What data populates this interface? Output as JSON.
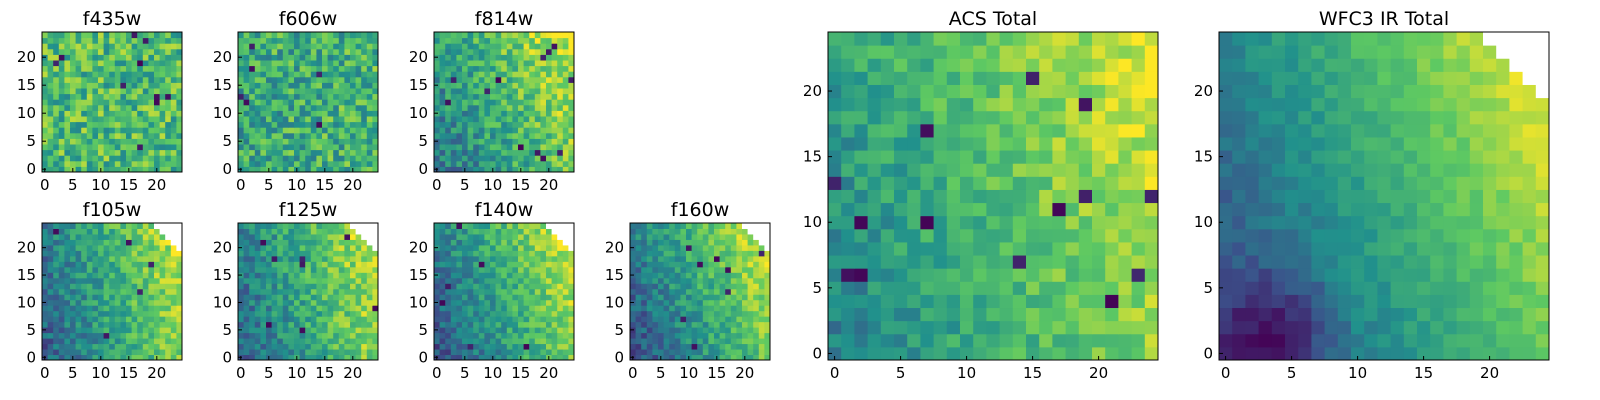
{
  "figure": {
    "colormap": [
      "#440154",
      "#3b528b",
      "#21918c",
      "#5ec962",
      "#fde725"
    ],
    "frame_color": "#000000",
    "missing_color": "#ffffff"
  },
  "chart_data": [
    {
      "type": "heatmap",
      "title": "f435w",
      "grid_size": 25,
      "xticks": [
        0,
        5,
        10,
        15,
        20
      ],
      "yticks": [
        0,
        5,
        10,
        15,
        20
      ],
      "xlim": [
        -0.5,
        24.5
      ],
      "ylim": [
        -0.5,
        24.5
      ],
      "value_range": [
        0,
        1
      ],
      "gradient": [
        0.0,
        0.0
      ],
      "base": 0.68,
      "noise": 0.22,
      "dark_spots": 10,
      "blank_corner": 0,
      "seed": 11
    },
    {
      "type": "heatmap",
      "title": "f606w",
      "grid_size": 25,
      "xticks": [
        0,
        5,
        10,
        15,
        20
      ],
      "yticks": [
        0,
        5,
        10,
        15,
        20
      ],
      "xlim": [
        -0.5,
        24.5
      ],
      "ylim": [
        -0.5,
        24.5
      ],
      "value_range": [
        0,
        1
      ],
      "gradient": [
        0.05,
        0.0
      ],
      "base": 0.6,
      "noise": 0.22,
      "dark_spots": 6,
      "blank_corner": 0,
      "seed": 23
    },
    {
      "type": "heatmap",
      "title": "f814w",
      "grid_size": 25,
      "xticks": [
        0,
        5,
        10,
        15,
        20
      ],
      "yticks": [
        0,
        5,
        10,
        15,
        20
      ],
      "xlim": [
        -0.5,
        24.5
      ],
      "ylim": [
        -0.5,
        24.5
      ],
      "value_range": [
        0,
        1
      ],
      "gradient": [
        0.38,
        0.18
      ],
      "base": 0.38,
      "noise": 0.18,
      "dark_spots": 12,
      "blank_corner": 0,
      "seed": 37
    },
    {
      "type": "heatmap",
      "title": "f105w",
      "grid_size": 25,
      "xticks": [
        0,
        5,
        10,
        15,
        20
      ],
      "yticks": [
        0,
        5,
        10,
        15,
        20
      ],
      "xlim": [
        -0.5,
        24.5
      ],
      "ylim": [
        -0.5,
        24.5
      ],
      "value_range": [
        0,
        1
      ],
      "gradient": [
        0.5,
        0.12
      ],
      "base": 0.3,
      "noise": 0.15,
      "dark_spots": 6,
      "blank_corner": 6,
      "seed": 41
    },
    {
      "type": "heatmap",
      "title": "f125w",
      "grid_size": 25,
      "xticks": [
        0,
        5,
        10,
        15,
        20
      ],
      "yticks": [
        0,
        5,
        10,
        15,
        20
      ],
      "xlim": [
        -0.5,
        24.5
      ],
      "ylim": [
        -0.5,
        24.5
      ],
      "value_range": [
        0,
        1
      ],
      "gradient": [
        0.5,
        0.12
      ],
      "base": 0.32,
      "noise": 0.16,
      "dark_spots": 8,
      "blank_corner": 6,
      "seed": 53
    },
    {
      "type": "heatmap",
      "title": "f140w",
      "grid_size": 25,
      "xticks": [
        0,
        5,
        10,
        15,
        20
      ],
      "yticks": [
        0,
        5,
        10,
        15,
        20
      ],
      "xlim": [
        -0.5,
        24.5
      ],
      "ylim": [
        -0.5,
        24.5
      ],
      "value_range": [
        0,
        1
      ],
      "gradient": [
        0.52,
        0.18
      ],
      "base": 0.26,
      "noise": 0.14,
      "dark_spots": 6,
      "blank_corner": 6,
      "seed": 67
    },
    {
      "type": "heatmap",
      "title": "f160w",
      "grid_size": 25,
      "xticks": [
        0,
        5,
        10,
        15,
        20
      ],
      "yticks": [
        0,
        5,
        10,
        15,
        20
      ],
      "xlim": [
        -0.5,
        24.5
      ],
      "ylim": [
        -0.5,
        24.5
      ],
      "value_range": [
        0,
        1
      ],
      "gradient": [
        0.52,
        0.2
      ],
      "base": 0.24,
      "noise": 0.14,
      "dark_spots": 8,
      "blank_corner": 6,
      "seed": 79
    },
    {
      "type": "heatmap",
      "title": "ACS Total",
      "grid_size": 25,
      "xticks": [
        0,
        5,
        10,
        15,
        20
      ],
      "yticks": [
        0,
        5,
        10,
        15,
        20
      ],
      "xlim": [
        -0.5,
        24.5
      ],
      "ylim": [
        -0.5,
        24.5
      ],
      "value_range": [
        0,
        1
      ],
      "gradient": [
        0.4,
        0.15
      ],
      "base": 0.42,
      "noise": 0.12,
      "dark_spots": 14,
      "blank_corner": 0,
      "seed": 83
    },
    {
      "type": "heatmap",
      "title": "WFC3 IR Total",
      "grid_size": 25,
      "xticks": [
        0,
        5,
        10,
        15,
        20
      ],
      "yticks": [
        0,
        5,
        10,
        15,
        20
      ],
      "xlim": [
        -0.5,
        24.5
      ],
      "ylim": [
        -0.5,
        24.5
      ],
      "value_range": [
        0,
        1
      ],
      "gradient": [
        0.55,
        0.25
      ],
      "base": 0.2,
      "noise": 0.06,
      "dark_spots": 0,
      "blank_corner": 5,
      "seed": 97
    }
  ]
}
